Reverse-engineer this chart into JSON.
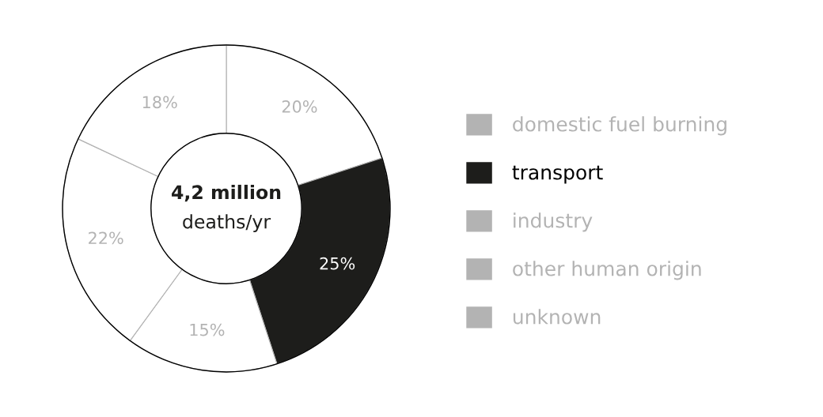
{
  "chart_data": {
    "type": "donut",
    "categories": [
      "domestic fuel burning",
      "transport",
      "industry",
      "other human origin",
      "unknown"
    ],
    "values": [
      20,
      25,
      15,
      22,
      18
    ],
    "colors": [
      "#ffffff",
      "#1d1d1b",
      "#ffffff",
      "#ffffff",
      "#ffffff"
    ],
    "value_labels": [
      "20%",
      "25%",
      "15%",
      "22%",
      "18%"
    ],
    "annotations": [
      "4,2 million",
      "deaths/yr"
    ],
    "legend": "right"
  }
}
